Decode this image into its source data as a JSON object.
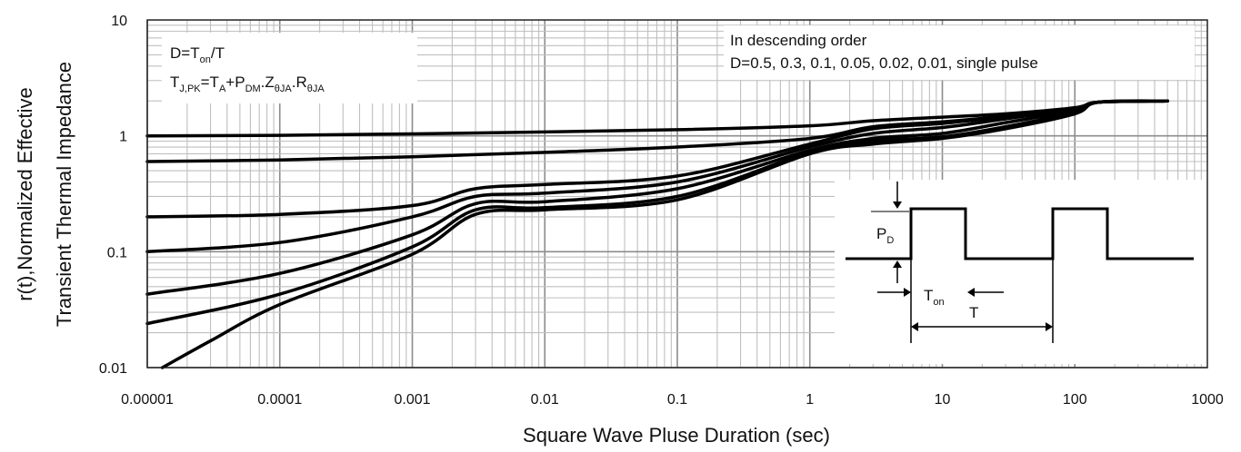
{
  "chart_data": {
    "type": "line",
    "scale": {
      "x": "log",
      "y": "log"
    },
    "xlabel": "Square Wave Pluse Duration (sec)",
    "ylabel_lines": [
      "r(t),Normalized Effective",
      "Transient Thermal Impedance"
    ],
    "xlim": [
      1e-05,
      1000
    ],
    "ylim": [
      0.01,
      10
    ],
    "x_ticks": [
      "0.00001",
      "0.0001",
      "0.001",
      "0.01",
      "0.1",
      "1",
      "10",
      "100",
      "1000"
    ],
    "y_ticks": [
      "0.01",
      "0.1",
      "1",
      "10"
    ],
    "grid": true,
    "note_left": {
      "line1": {
        "base": "D=T",
        "sub": "on",
        "tail": "/T"
      },
      "line2": {
        "p1": "T",
        "s1": "J,PK",
        "p2": "=T",
        "s2": "A",
        "p3": "+P",
        "s3": "DM",
        "p4": ".Z",
        "s4": "θJA",
        "p5": ".R",
        "s5": "θJA"
      }
    },
    "note_right": {
      "line1": "In descending order",
      "line2": "D=0.5, 0.3, 0.1, 0.05, 0.02, 0.01, single pulse"
    },
    "inset": {
      "pd": {
        "base": "P",
        "sub": "D"
      },
      "ton": {
        "base": "T",
        "sub": "on"
      },
      "t": "T"
    },
    "series": [
      {
        "x": [
          1e-05,
          0.0001,
          0.001,
          0.01,
          0.1,
          1,
          3,
          10,
          30,
          100,
          150,
          500
        ],
        "y": [
          1.0,
          1.01,
          1.04,
          1.08,
          1.13,
          1.22,
          1.35,
          1.45,
          1.55,
          1.75,
          1.95,
          2.0
        ]
      },
      {
        "x": [
          1e-05,
          0.0001,
          0.001,
          0.01,
          0.1,
          1,
          3,
          10,
          30,
          100,
          150,
          500
        ],
        "y": [
          0.6,
          0.62,
          0.66,
          0.72,
          0.8,
          0.95,
          1.2,
          1.32,
          1.48,
          1.72,
          1.95,
          2.0
        ]
      },
      {
        "x": [
          1e-05,
          0.0001,
          0.001,
          0.003,
          0.01,
          0.1,
          1,
          3,
          10,
          30,
          100,
          150,
          500
        ],
        "y": [
          0.2,
          0.21,
          0.25,
          0.35,
          0.38,
          0.45,
          0.85,
          1.15,
          1.28,
          1.46,
          1.72,
          1.95,
          2.0
        ]
      },
      {
        "x": [
          1e-05,
          0.0001,
          0.001,
          0.003,
          0.01,
          0.1,
          1,
          3,
          10,
          30,
          100,
          150,
          500
        ],
        "y": [
          0.1,
          0.12,
          0.2,
          0.3,
          0.32,
          0.4,
          0.8,
          1.05,
          1.18,
          1.4,
          1.7,
          1.95,
          2.0
        ]
      },
      {
        "x": [
          1e-05,
          0.0001,
          0.001,
          0.003,
          0.01,
          0.1,
          1,
          3,
          10,
          30,
          100,
          150,
          500
        ],
        "y": [
          0.043,
          0.065,
          0.14,
          0.26,
          0.27,
          0.35,
          0.75,
          0.95,
          1.05,
          1.3,
          1.65,
          1.95,
          2.0
        ]
      },
      {
        "x": [
          1e-05,
          0.0001,
          0.001,
          0.003,
          0.01,
          0.1,
          1,
          3,
          10,
          30,
          100,
          150,
          500
        ],
        "y": [
          0.024,
          0.043,
          0.11,
          0.23,
          0.24,
          0.3,
          0.72,
          0.9,
          0.98,
          1.2,
          1.6,
          1.95,
          2.0
        ]
      },
      {
        "x": [
          1.3e-05,
          3e-05,
          0.0001,
          0.001,
          0.003,
          0.01,
          0.1,
          1,
          3,
          10,
          30,
          100,
          150,
          500
        ],
        "y": [
          0.01,
          0.017,
          0.035,
          0.095,
          0.21,
          0.23,
          0.28,
          0.7,
          0.85,
          0.95,
          1.15,
          1.55,
          1.95,
          2.0
        ]
      }
    ],
    "colors": {
      "line": "#000000",
      "grid": "#bfbfbf",
      "frame": "#222222"
    }
  }
}
